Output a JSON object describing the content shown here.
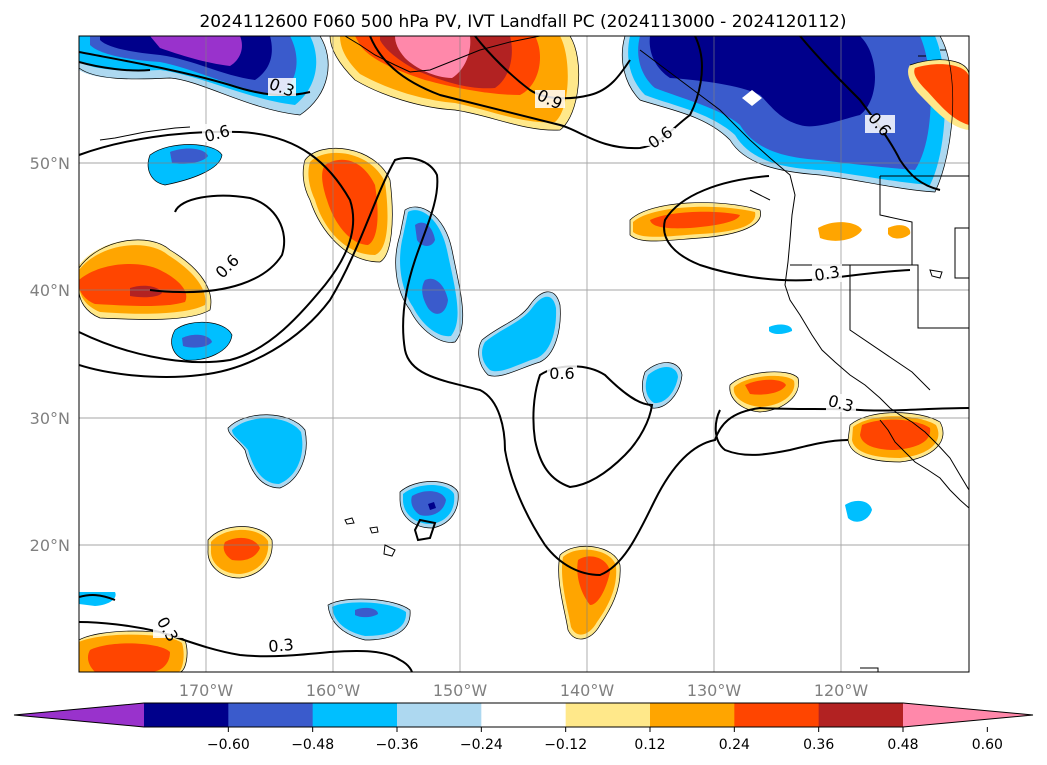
{
  "title": "2024112600 F060 500 hPa PV, IVT Landfall PC (2024113000 - 2024120112)",
  "map": {
    "lat_labels": [
      "50°N",
      "40°N",
      "30°N",
      "20°N"
    ],
    "lon_labels": [
      "170°W",
      "160°W",
      "150°W",
      "140°W",
      "130°W",
      "120°W"
    ],
    "extent": {
      "lon": [
        -180,
        -110
      ],
      "lat": [
        10,
        60
      ]
    },
    "gridlines": true,
    "contour_labels": [
      "0.3",
      "0.6",
      "0.6",
      "0.9",
      "0.6",
      "0.6",
      "0.6",
      "0.6",
      "0.3",
      "0.3",
      "0.3",
      "0.3"
    ]
  },
  "colorbar": {
    "ticks": [
      "−0.60",
      "−0.48",
      "−0.36",
      "−0.24",
      "−0.12",
      "0.12",
      "0.24",
      "0.36",
      "0.48",
      "0.60"
    ],
    "colors": [
      "#9932cc",
      "#00008b",
      "#3a5bcc",
      "#00bfff",
      "#add8f0",
      "#ffffff",
      "#ffe88a",
      "#ffa500",
      "#ff4500",
      "#b22222",
      "#ff88aa"
    ],
    "extend": "both"
  }
}
